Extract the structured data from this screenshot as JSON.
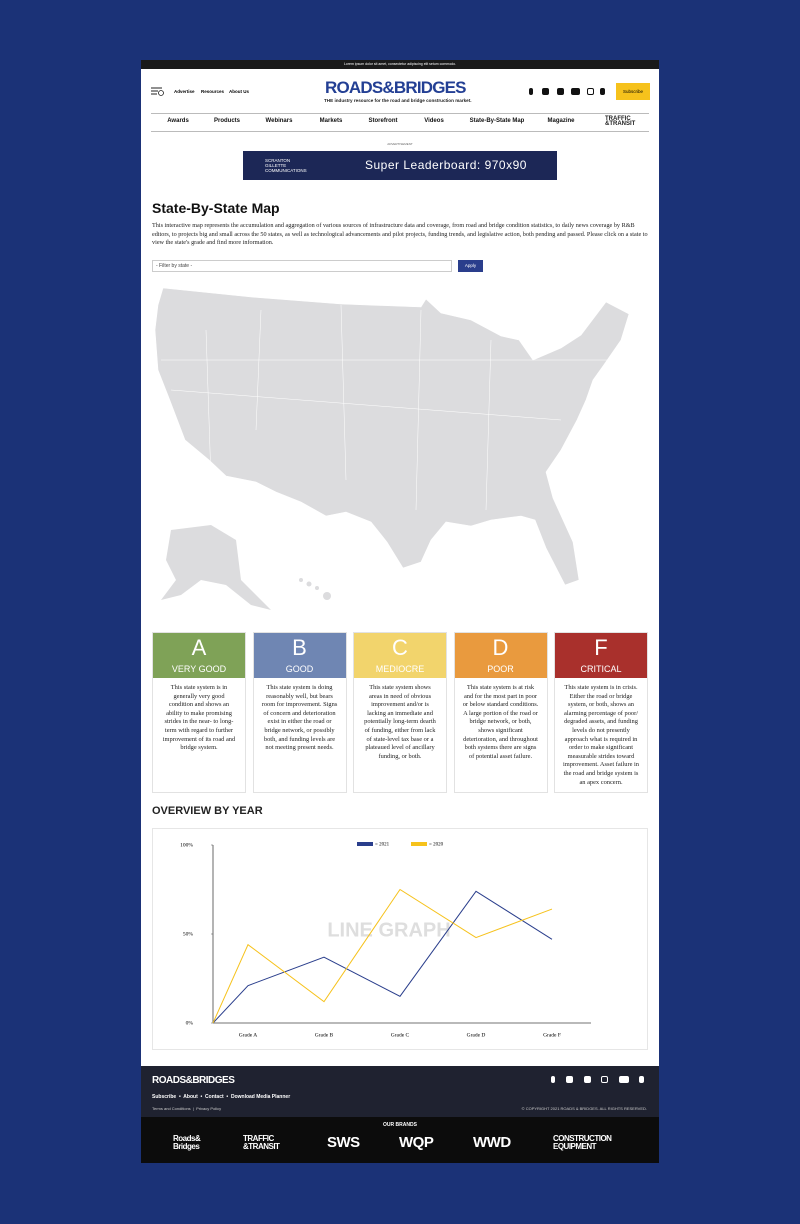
{
  "top_bar": {
    "text": "Lorem ipsum dolor sit amet, consectetur adipiscing elit setum commodo."
  },
  "header": {
    "links": [
      "Advertise",
      "Resources",
      "About Us"
    ],
    "logo": "ROADS&BRIDGES",
    "tagline": "THE industry resource for the road and bridge construction market.",
    "subscribe": "Subscribe"
  },
  "nav": {
    "items": [
      "Awards",
      "Products",
      "Webinars",
      "Markets",
      "Storefront",
      "Videos",
      "State-By-State Map",
      "Magazine"
    ],
    "logo": "TRAFFIC &TRANSIT"
  },
  "ad": {
    "label": "ADVERTISEMENT",
    "brand": "SCRANTON GILLETTE COMMUNICATIONS",
    "text": "Super Leaderboard: 970x90"
  },
  "map_section": {
    "title": "State-By-State Map",
    "description": "This interactive map represents the accumulation and aggregation of various sources of infrastructure data and coverage, from road and bridge condition statistics, to daily news coverage by R&B editors, to projects big and small across the 50 states, as well as technological advancements and pilot projects, funding trends, and legislative action, both pending and passed. Please click on a state to view the state's grade and find more information.",
    "filter_placeholder": "- Filter by state -",
    "apply": "Apply"
  },
  "grades": [
    {
      "letter": "A",
      "label": "VERY GOOD",
      "color": "#7fa257",
      "description": "This state system is in generally very good condition and shows an ability to make promising strides in the near- to long-term with regard to further improvement of its road and bridge system."
    },
    {
      "letter": "B",
      "label": "GOOD",
      "color": "#6f86b3",
      "description": "This state system is doing reasonably well, but bears room for improvement. Signs of concern and deterioration exist in either the road or bridge network, or possibly both, and funding levels are not meeting present needs."
    },
    {
      "letter": "C",
      "label": "MEDIOCRE",
      "color": "#f2d46c",
      "description": "This state system shows areas in need of obvious improvement and/or is lacking an immediate and potentially long-term dearth of funding, either from lack of state-level tax base or a plateaued level of ancillary funding, or both."
    },
    {
      "letter": "D",
      "label": "POOR",
      "color": "#e99a3e",
      "description": "This state system is at risk and for the most part in poor or below standard conditions. A large portion of the road or bridge network, or both, shows significant deterioration, and throughout both systems there are signs of potential asset failure."
    },
    {
      "letter": "F",
      "label": "CRITICAL",
      "color": "#a9302c",
      "description": "This state system is in crisis. Either the road or bridge system, or both, shows an alarming percentage of poor/ degraded assets, and funding levels do not presently approach what is required in order to make significant measurable strides toward improvement. Asset failure in the road and bridge system is an apex concern."
    }
  ],
  "overview": {
    "heading": "OVERVIEW BY YEAR",
    "chart_data": {
      "type": "line",
      "annotation": "LINE GRAPH",
      "categories": [
        null,
        "Grade A",
        "Grade B",
        "Grade C",
        "Grade D",
        "Grade F"
      ],
      "series": [
        {
          "name": "= 2021",
          "color": "#2a3e8c",
          "values": [
            0,
            21,
            37,
            15,
            74,
            47
          ]
        },
        {
          "name": "= 2020",
          "color": "#f6c21c",
          "values": [
            0,
            44,
            12,
            75,
            48,
            64
          ]
        }
      ],
      "ylim": [
        0,
        100
      ],
      "yticks": [
        {
          "value": 0,
          "label": "0%"
        },
        {
          "value": 50,
          "label": "50%"
        },
        {
          "value": 100,
          "label": "100%"
        }
      ],
      "grid": false
    }
  },
  "footer": {
    "logo": "ROADS&BRIDGES",
    "links": "Subscribe  •  About  •  Contact  •  Download Media Planner",
    "legal": "Terms and Conditions  |  Privacy Policy",
    "copyright": "© COPYRIGHT 2021 ROADS & BRIDGES. ALL RIGHTS RESERVED.",
    "brands_title": "OUR BRANDS",
    "brands": [
      "Roads& Bridges",
      "TRAFFIC &TRANSIT",
      "SWS",
      "WQP",
      "WWD",
      "CONSTRUCTION EQUIPMENT"
    ]
  }
}
